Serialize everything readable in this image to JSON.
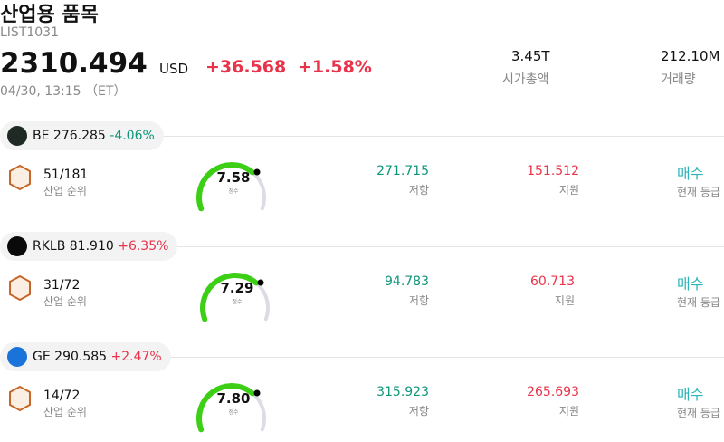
{
  "header": {
    "title": "산업용 품목",
    "code": "LIST1031",
    "price": "2310.494",
    "currency": "USD",
    "change": "+36.568",
    "change_pct": "+1.58%",
    "time": "04/30, 13:15 （ET）",
    "market_cap": "3.45T",
    "market_cap_label": "시가총액",
    "volume": "212.10M",
    "volume_label": "거래량"
  },
  "items": [
    {
      "ticker": "BE",
      "price": "276.285",
      "change": "-4.06%",
      "rank": "51/181",
      "rank_label": "산업 순위",
      "score": "7.58",
      "score_label": "점수",
      "resistance": "271.715",
      "resistance_label": "저항",
      "support": "151.512",
      "support_label": "지원",
      "rating": "매수",
      "rating_label": "현재 등급"
    },
    {
      "ticker": "RKLB",
      "price": "81.910",
      "change": "+6.35%",
      "rank": "31/72",
      "rank_label": "산업 순위",
      "score": "7.29",
      "score_label": "점수",
      "resistance": "94.783",
      "resistance_label": "저항",
      "support": "60.713",
      "support_label": "지원",
      "rating": "매수",
      "rating_label": "현재 등급"
    },
    {
      "ticker": "GE",
      "price": "290.585",
      "change": "+2.47%",
      "rank": "14/72",
      "rank_label": "산업 순위",
      "score": "7.80",
      "score_label": "점수",
      "resistance": "315.923",
      "resistance_label": "저항",
      "support": "265.693",
      "support_label": "지원",
      "rating": "매수",
      "rating_label": "현재 등급"
    }
  ]
}
